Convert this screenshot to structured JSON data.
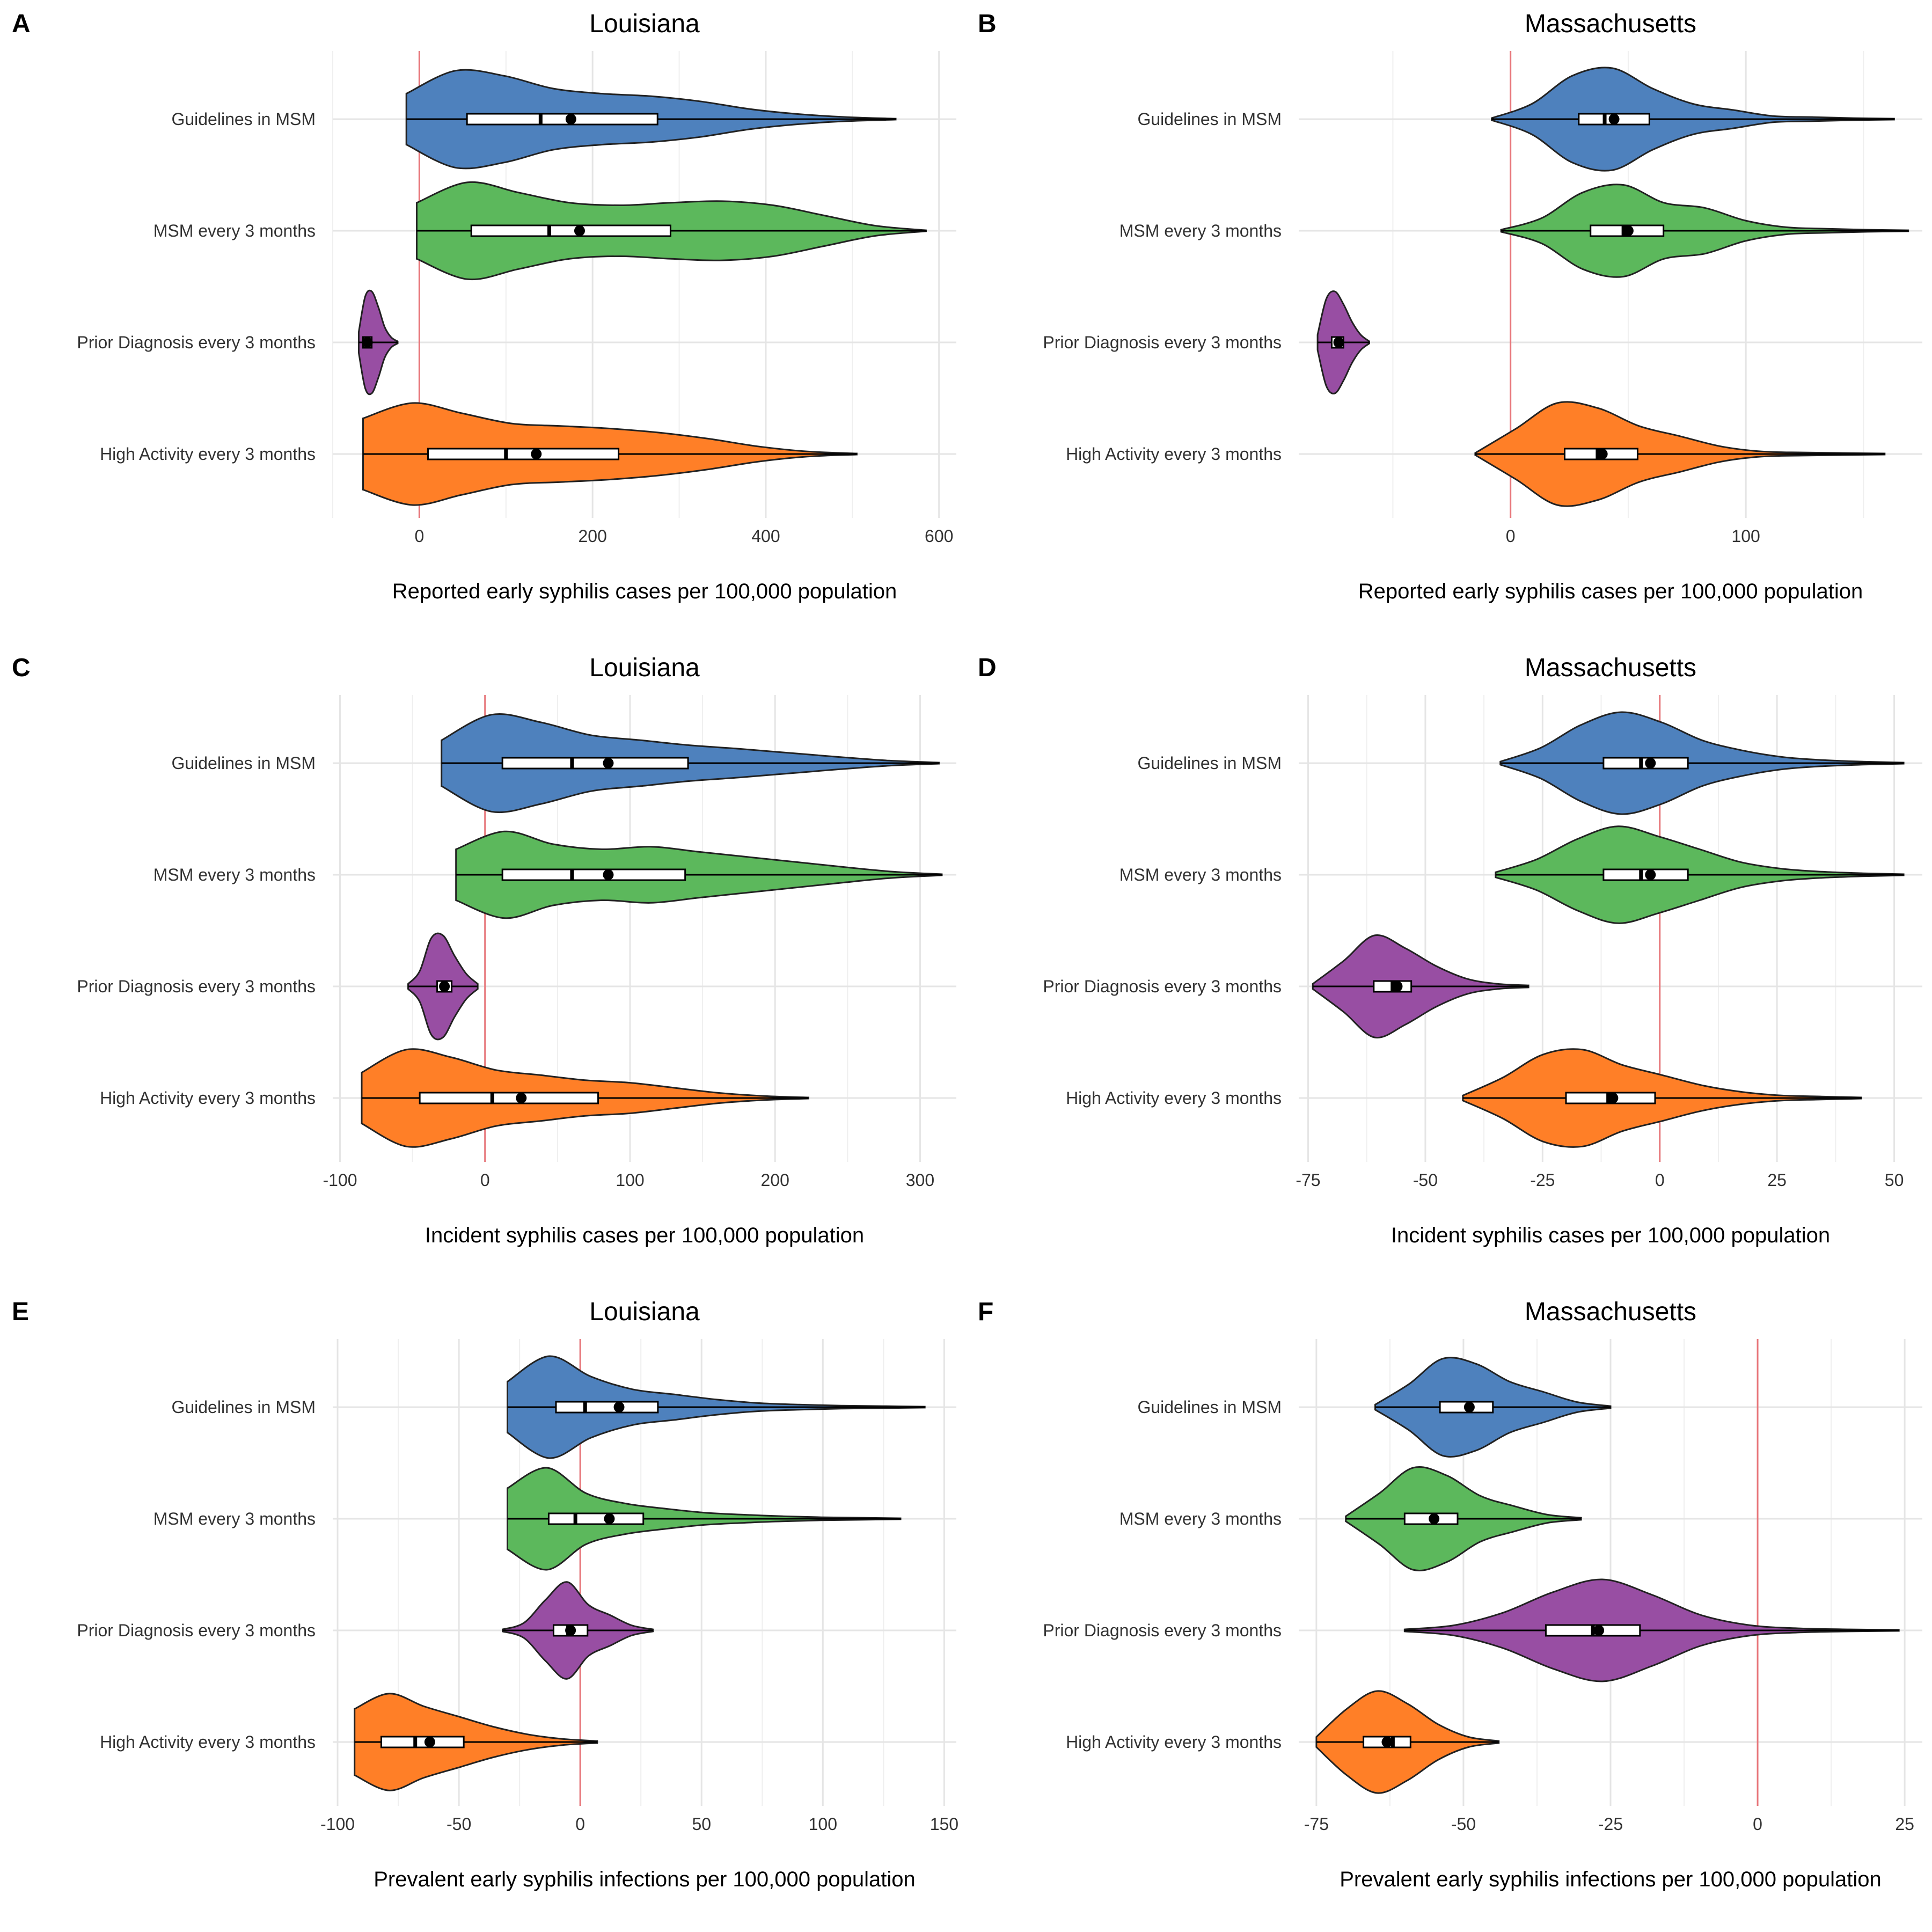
{
  "colors": {
    "Guidelines in MSM": "#4e81bd",
    "MSM every 3 months": "#5cb85c",
    "Prior Diagnosis every 3 months": "#984ea3",
    "High Activity every 3 months": "#ff7f27",
    "reference_line": "#e8767a"
  },
  "chart_data": [
    {
      "type": "violin",
      "panel": "A",
      "title": "Louisiana",
      "xlabel": "Reported early syphilis cases per 100,000 population",
      "xlim": [
        -100,
        620
      ],
      "xticks": [
        0,
        200,
        400,
        600
      ],
      "xtick_labels": [
        "0",
        "200",
        "400",
        "600"
      ],
      "reference_x": 0,
      "categories": [
        "Guidelines in MSM",
        "MSM every 3 months",
        "Prior Diagnosis every 3 months",
        "High Activity every 3 months"
      ],
      "series": [
        {
          "name": "Guidelines in MSM",
          "min": -15,
          "max": 550,
          "q1": 55,
          "median": 140,
          "q3": 275,
          "mean": 175,
          "density": [
            0.5,
            0.95,
            0.85,
            0.6,
            0.5,
            0.45,
            0.35,
            0.2,
            0.1,
            0.04,
            0.01
          ]
        },
        {
          "name": "MSM every 3 months",
          "min": -3,
          "max": 585,
          "q1": 60,
          "median": 150,
          "q3": 290,
          "mean": 185,
          "density": [
            0.55,
            0.95,
            0.75,
            0.55,
            0.5,
            0.55,
            0.58,
            0.5,
            0.3,
            0.1,
            0.01
          ]
        },
        {
          "name": "Prior Diagnosis every 3 months",
          "min": -70,
          "max": -25,
          "q1": -65,
          "median": -60,
          "q3": -55,
          "mean": -60,
          "density": [
            0.2,
            0.9,
            1.0,
            0.7,
            0.3,
            0.1,
            0.02
          ]
        },
        {
          "name": "High Activity every 3 months",
          "min": -65,
          "max": 505,
          "q1": 10,
          "median": 100,
          "q3": 230,
          "mean": 135,
          "density": [
            0.7,
            1.0,
            0.8,
            0.6,
            0.55,
            0.5,
            0.42,
            0.3,
            0.15,
            0.05,
            0.01
          ]
        }
      ]
    },
    {
      "type": "violin",
      "panel": "B",
      "title": "Massachusetts",
      "xlabel": "Reported early syphilis cases per 100,000 population",
      "xlim": [
        -90,
        175
      ],
      "xticks": [
        0,
        100
      ],
      "xtick_labels": [
        "0",
        "100"
      ],
      "reference_x": 0,
      "categories": [
        "Guidelines in MSM",
        "MSM every 3 months",
        "Prior Diagnosis every 3 months",
        "High Activity every 3 months"
      ],
      "series": [
        {
          "name": "Guidelines in MSM",
          "min": -8,
          "max": 163,
          "q1": 29,
          "median": 40,
          "q3": 59,
          "mean": 44,
          "density": [
            0.02,
            0.3,
            0.85,
            1.0,
            0.6,
            0.3,
            0.18,
            0.06,
            0.04,
            0.02,
            0.01
          ]
        },
        {
          "name": "MSM every 3 months",
          "min": -4,
          "max": 169,
          "q1": 34,
          "median": 48,
          "q3": 65,
          "mean": 50,
          "density": [
            0.02,
            0.25,
            0.75,
            0.9,
            0.55,
            0.45,
            0.2,
            0.07,
            0.04,
            0.02,
            0.01
          ]
        },
        {
          "name": "Prior Diagnosis every 3 months",
          "min": -82,
          "max": -60,
          "q1": -76,
          "median": -73,
          "q3": -71,
          "mean": -73,
          "density": [
            0.15,
            0.85,
            1.0,
            0.75,
            0.4,
            0.15,
            0.02
          ]
        },
        {
          "name": "High Activity every 3 months",
          "min": -15,
          "max": 159,
          "q1": 23,
          "median": 37,
          "q3": 54,
          "mean": 39,
          "density": [
            0.02,
            0.5,
            1.0,
            0.9,
            0.55,
            0.35,
            0.15,
            0.05,
            0.03,
            0.02,
            0.01
          ]
        }
      ]
    },
    {
      "type": "violin",
      "panel": "C",
      "title": "Louisiana",
      "xlabel": "Incident syphilis cases per 100,000 population",
      "xlim": [
        -105,
        325
      ],
      "xticks": [
        -100,
        0,
        100,
        200,
        300
      ],
      "xtick_labels": [
        "-100",
        "0",
        "100",
        "200",
        "300"
      ],
      "reference_x": 0,
      "categories": [
        "Guidelines in MSM",
        "MSM every 3 months",
        "Prior Diagnosis every 3 months",
        "High Activity every 3 months"
      ],
      "series": [
        {
          "name": "Guidelines in MSM",
          "min": -30,
          "max": 313,
          "q1": 12,
          "median": 60,
          "q3": 140,
          "mean": 85,
          "density": [
            0.45,
            0.95,
            0.8,
            0.55,
            0.45,
            0.35,
            0.28,
            0.2,
            0.12,
            0.05,
            0.01
          ]
        },
        {
          "name": "MSM every 3 months",
          "min": -20,
          "max": 315,
          "q1": 12,
          "median": 60,
          "q3": 138,
          "mean": 85,
          "density": [
            0.5,
            0.85,
            0.6,
            0.5,
            0.55,
            0.45,
            0.35,
            0.25,
            0.15,
            0.06,
            0.01
          ]
        },
        {
          "name": "Prior Diagnosis every 3 months",
          "min": -53,
          "max": -5,
          "q1": -33,
          "median": -28,
          "q3": -23,
          "mean": -28,
          "density": [
            0.05,
            0.3,
            0.95,
            1.0,
            0.6,
            0.25,
            0.05
          ]
        },
        {
          "name": "High Activity every 3 months",
          "min": -85,
          "max": 223,
          "q1": -45,
          "median": 5,
          "q3": 78,
          "mean": 25,
          "density": [
            0.5,
            0.95,
            0.8,
            0.55,
            0.45,
            0.35,
            0.3,
            0.2,
            0.1,
            0.04,
            0.01
          ]
        }
      ]
    },
    {
      "type": "violin",
      "panel": "D",
      "title": "Massachusetts",
      "xlabel": "Incident syphilis cases per 100,000 population",
      "xlim": [
        -77,
        56
      ],
      "xticks": [
        -75,
        -50,
        -25,
        0,
        25,
        50
      ],
      "xtick_labels": [
        "-75",
        "-50",
        "-25",
        "0",
        "25",
        "50"
      ],
      "reference_x": 0,
      "categories": [
        "Guidelines in MSM",
        "MSM every 3 months",
        "Prior Diagnosis every 3 months",
        "High Activity every 3 months"
      ],
      "series": [
        {
          "name": "Guidelines in MSM",
          "min": -34,
          "max": 52,
          "q1": -12,
          "median": -4,
          "q3": 6,
          "mean": -2,
          "density": [
            0.03,
            0.3,
            0.75,
            1.0,
            0.8,
            0.45,
            0.25,
            0.12,
            0.06,
            0.03,
            0.01
          ]
        },
        {
          "name": "MSM every 3 months",
          "min": -35,
          "max": 52,
          "q1": -12,
          "median": -4,
          "q3": 6,
          "mean": -2,
          "density": [
            0.05,
            0.3,
            0.7,
            0.95,
            0.75,
            0.5,
            0.25,
            0.12,
            0.06,
            0.03,
            0.01
          ]
        },
        {
          "name": "Prior Diagnosis every 3 months",
          "min": -74,
          "max": -28,
          "q1": -61,
          "median": -57,
          "q3": -53,
          "mean": -56,
          "density": [
            0.05,
            0.5,
            1.0,
            0.75,
            0.4,
            0.15,
            0.05,
            0.02
          ]
        },
        {
          "name": "High Activity every 3 months",
          "min": -42,
          "max": 43,
          "q1": -20,
          "median": -11,
          "q3": -1,
          "mean": -10,
          "density": [
            0.05,
            0.4,
            0.85,
            0.95,
            0.65,
            0.45,
            0.25,
            0.12,
            0.05,
            0.03,
            0.01
          ]
        }
      ]
    },
    {
      "type": "violin",
      "panel": "E",
      "title": "Louisiana",
      "xlabel": "Prevalent early syphilis infections per 100,000 population",
      "xlim": [
        -102,
        155
      ],
      "xticks": [
        -100,
        -50,
        0,
        50,
        100,
        150
      ],
      "xtick_labels": [
        "-100",
        "-50",
        "0",
        "50",
        "100",
        "150"
      ],
      "reference_x": 0,
      "categories": [
        "Guidelines in MSM",
        "MSM every 3 months",
        "Prior Diagnosis every 3 months",
        "High Activity every 3 months"
      ],
      "series": [
        {
          "name": "Guidelines in MSM",
          "min": -30,
          "max": 142,
          "q1": -10,
          "median": 2,
          "q3": 32,
          "mean": 16,
          "density": [
            0.5,
            1.0,
            0.6,
            0.35,
            0.25,
            0.15,
            0.08,
            0.05,
            0.03,
            0.02,
            0.01
          ]
        },
        {
          "name": "MSM every 3 months",
          "min": -30,
          "max": 132,
          "q1": -13,
          "median": -2,
          "q3": 26,
          "mean": 12,
          "density": [
            0.6,
            1.0,
            0.5,
            0.3,
            0.2,
            0.12,
            0.08,
            0.05,
            0.03,
            0.02,
            0.01
          ]
        },
        {
          "name": "Prior Diagnosis every 3 months",
          "min": -32,
          "max": 30,
          "q1": -11,
          "median": -5,
          "q3": 3,
          "mean": -4,
          "density": [
            0.02,
            0.15,
            0.6,
            0.95,
            0.5,
            0.3,
            0.1,
            0.02
          ]
        },
        {
          "name": "High Activity every 3 months",
          "min": -93,
          "max": 7,
          "q1": -82,
          "median": -68,
          "q3": -48,
          "mean": -62,
          "density": [
            0.65,
            0.95,
            0.7,
            0.5,
            0.3,
            0.15,
            0.06,
            0.02
          ]
        }
      ]
    },
    {
      "type": "violin",
      "panel": "F",
      "title": "Massachusetts",
      "xlabel": "Prevalent early syphilis infections per 100,000 population",
      "xlim": [
        -78,
        28
      ],
      "xticks": [
        -75,
        -50,
        -25,
        0,
        25
      ],
      "xtick_labels": [
        "-75",
        "-50",
        "-25",
        "0",
        "25"
      ],
      "reference_x": 0,
      "categories": [
        "Guidelines in MSM",
        "MSM every 3 months",
        "Prior Diagnosis every 3 months",
        "High Activity every 3 months"
      ],
      "series": [
        {
          "name": "Guidelines in MSM",
          "min": -65,
          "max": -25,
          "q1": -54,
          "median": -49,
          "q3": -45,
          "mean": -49,
          "density": [
            0.05,
            0.45,
            0.95,
            0.85,
            0.5,
            0.3,
            0.1,
            0.02
          ]
        },
        {
          "name": "MSM every 3 months",
          "min": -70,
          "max": -30,
          "q1": -60,
          "median": -55,
          "q3": -51,
          "mean": -55,
          "density": [
            0.05,
            0.5,
            1.0,
            0.85,
            0.45,
            0.25,
            0.08,
            0.02
          ]
        },
        {
          "name": "Prior Diagnosis every 3 months",
          "min": -60,
          "max": 24,
          "q1": -36,
          "median": -28,
          "q3": -20,
          "mean": -27,
          "density": [
            0.02,
            0.1,
            0.35,
            0.75,
            1.0,
            0.7,
            0.3,
            0.1,
            0.04,
            0.02,
            0.01
          ]
        },
        {
          "name": "High Activity every 3 months",
          "min": -75,
          "max": -44,
          "q1": -67,
          "median": -62,
          "q3": -59,
          "mean": -63,
          "density": [
            0.1,
            0.65,
            1.0,
            0.75,
            0.35,
            0.1,
            0.02
          ]
        }
      ]
    }
  ]
}
